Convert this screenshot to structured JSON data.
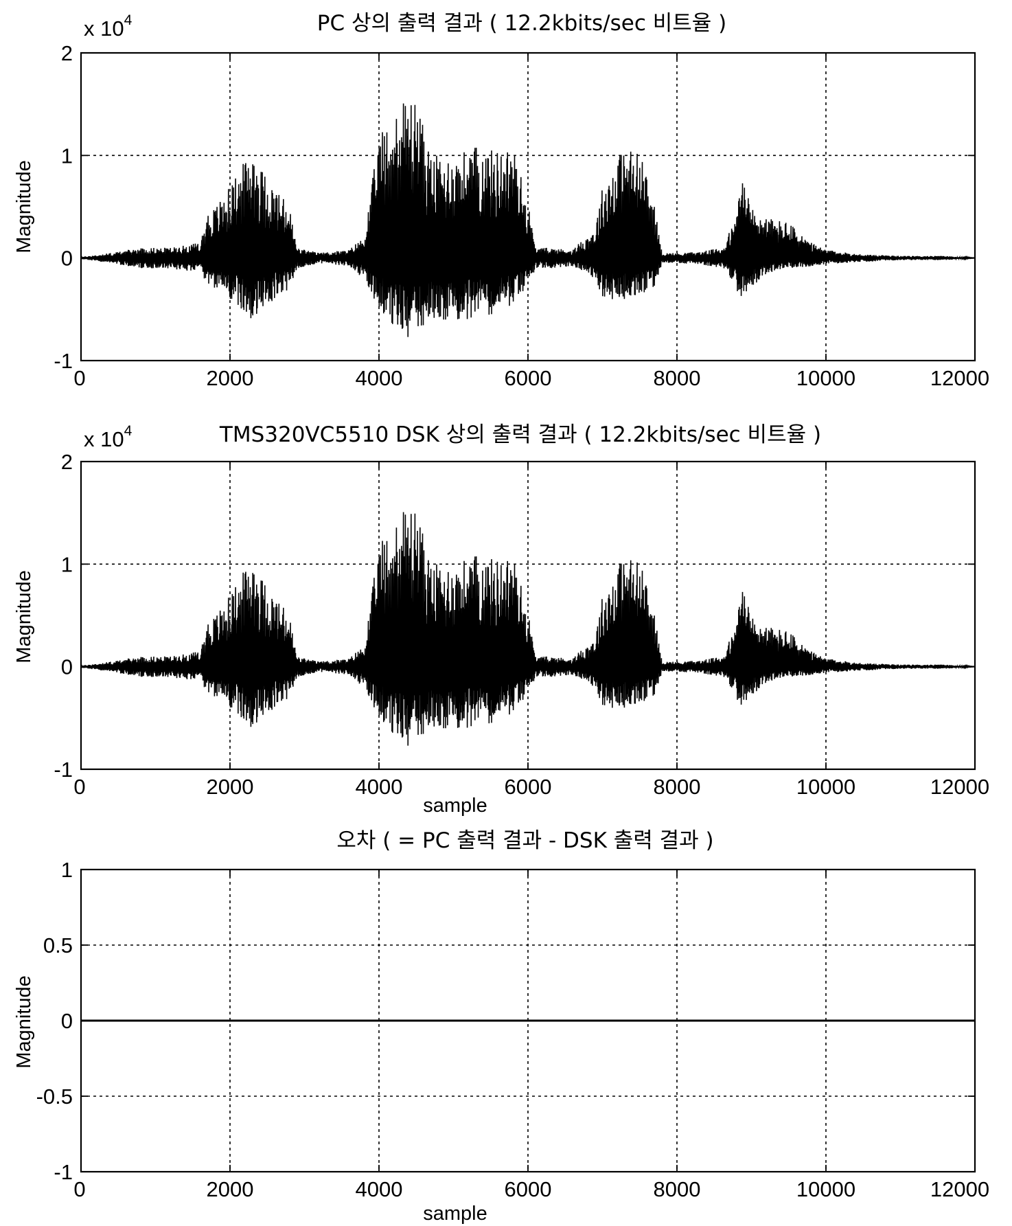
{
  "chart_data": [
    {
      "type": "line",
      "title": "PC 상의 출력 결과 ( 12.2kbits/sec 비트율 )",
      "multiplier_base": "x 10",
      "multiplier_exp": "4",
      "xlabel": "",
      "ylabel": "Magnitude",
      "xlim": [
        0,
        12000
      ],
      "ylim": [
        -1,
        2
      ],
      "xticks": [
        "0",
        "2000",
        "4000",
        "6000",
        "8000",
        "10000",
        "12000"
      ],
      "yticks": [
        "-1",
        "0",
        "1",
        "2"
      ],
      "grid": true,
      "series": [
        {
          "envelope_x": [
            0,
            400,
            800,
            1200,
            1600,
            1700,
            1800,
            2000,
            2200,
            2300,
            2400,
            2600,
            2800,
            2900,
            3200,
            3600,
            3700,
            3800,
            4000,
            4200,
            4400,
            4500,
            4700,
            5000,
            5300,
            5600,
            5800,
            6000,
            6100,
            6300,
            6600,
            6900,
            7000,
            7200,
            7300,
            7500,
            7700,
            7800,
            8000,
            8300,
            8600,
            8800,
            8850,
            9000,
            9200,
            9500,
            9800,
            10000,
            10400,
            11000,
            11600,
            12000
          ],
          "upper": [
            0.01,
            0.05,
            0.1,
            0.1,
            0.15,
            0.45,
            0.5,
            0.7,
            0.95,
            1.15,
            0.9,
            0.7,
            0.5,
            0.1,
            0.05,
            0.08,
            0.15,
            0.2,
            1.2,
            1.4,
            1.6,
            1.55,
            1.0,
            1.0,
            1.1,
            1.05,
            1.1,
            0.55,
            0.1,
            0.1,
            0.08,
            0.3,
            0.7,
            1.0,
            1.1,
            1.05,
            0.5,
            0.05,
            0.05,
            0.06,
            0.1,
            0.4,
            0.88,
            0.5,
            0.4,
            0.35,
            0.15,
            0.08,
            0.04,
            0.02,
            0.02,
            0.0
          ],
          "lower": [
            -0.01,
            -0.05,
            -0.1,
            -0.1,
            -0.15,
            -0.25,
            -0.3,
            -0.4,
            -0.55,
            -0.65,
            -0.55,
            -0.4,
            -0.3,
            -0.1,
            -0.05,
            -0.08,
            -0.15,
            -0.2,
            -0.5,
            -0.7,
            -0.8,
            -0.75,
            -0.6,
            -0.6,
            -0.6,
            -0.55,
            -0.45,
            -0.3,
            -0.1,
            -0.1,
            -0.08,
            -0.2,
            -0.4,
            -0.42,
            -0.4,
            -0.38,
            -0.3,
            -0.05,
            -0.05,
            -0.06,
            -0.1,
            -0.3,
            -0.4,
            -0.3,
            -0.15,
            -0.1,
            -0.08,
            -0.06,
            -0.04,
            -0.02,
            -0.02,
            0.0
          ]
        }
      ]
    },
    {
      "type": "line",
      "title": "TMS320VC5510 DSK 상의 출력 결과 ( 12.2kbits/sec 비트율 )",
      "multiplier_base": "x 10",
      "multiplier_exp": "4",
      "xlabel": "sample",
      "ylabel": "Magnitude",
      "xlim": [
        0,
        12000
      ],
      "ylim": [
        -1,
        2
      ],
      "xticks": [
        "0",
        "2000",
        "4000",
        "6000",
        "8000",
        "10000",
        "12000"
      ],
      "yticks": [
        "-1",
        "0",
        "1",
        "2"
      ],
      "grid": true,
      "series": [
        {
          "envelope_x": [
            0,
            400,
            800,
            1200,
            1600,
            1700,
            1800,
            2000,
            2200,
            2300,
            2400,
            2600,
            2800,
            2900,
            3200,
            3600,
            3700,
            3800,
            4000,
            4200,
            4400,
            4500,
            4700,
            5000,
            5300,
            5600,
            5800,
            6000,
            6100,
            6300,
            6600,
            6900,
            7000,
            7200,
            7300,
            7500,
            7700,
            7800,
            8000,
            8300,
            8600,
            8800,
            8850,
            9000,
            9200,
            9500,
            9800,
            10000,
            10400,
            11000,
            11600,
            12000
          ],
          "upper": [
            0.01,
            0.05,
            0.1,
            0.1,
            0.15,
            0.45,
            0.5,
            0.7,
            0.95,
            1.15,
            0.9,
            0.7,
            0.5,
            0.1,
            0.05,
            0.08,
            0.15,
            0.2,
            1.2,
            1.4,
            1.6,
            1.55,
            1.0,
            1.0,
            1.1,
            1.05,
            1.1,
            0.55,
            0.1,
            0.1,
            0.08,
            0.3,
            0.7,
            1.0,
            1.1,
            1.05,
            0.5,
            0.05,
            0.05,
            0.06,
            0.1,
            0.4,
            0.88,
            0.5,
            0.4,
            0.35,
            0.15,
            0.08,
            0.04,
            0.02,
            0.02,
            0.0
          ],
          "lower": [
            -0.01,
            -0.05,
            -0.1,
            -0.1,
            -0.15,
            -0.25,
            -0.3,
            -0.4,
            -0.55,
            -0.65,
            -0.55,
            -0.4,
            -0.3,
            -0.1,
            -0.05,
            -0.08,
            -0.15,
            -0.2,
            -0.5,
            -0.7,
            -0.8,
            -0.75,
            -0.6,
            -0.6,
            -0.6,
            -0.55,
            -0.45,
            -0.3,
            -0.1,
            -0.1,
            -0.08,
            -0.2,
            -0.4,
            -0.42,
            -0.4,
            -0.38,
            -0.3,
            -0.05,
            -0.05,
            -0.06,
            -0.1,
            -0.3,
            -0.4,
            -0.3,
            -0.15,
            -0.1,
            -0.08,
            -0.06,
            -0.04,
            -0.02,
            -0.02,
            0.0
          ]
        }
      ]
    },
    {
      "type": "line",
      "title": "오차 ( = PC  출력 결과 - DSK 출력 결과 )",
      "xlabel": "sample",
      "ylabel": "Magnitude",
      "xlim": [
        0,
        12000
      ],
      "ylim": [
        -1,
        1
      ],
      "xticks": [
        "0",
        "2000",
        "4000",
        "6000",
        "8000",
        "10000",
        "12000"
      ],
      "yticks": [
        "-1",
        "-0.5",
        "0",
        "0.5",
        "1"
      ],
      "grid": true,
      "series": [
        {
          "x": [
            0,
            12000
          ],
          "y": [
            0,
            0
          ]
        }
      ]
    }
  ]
}
